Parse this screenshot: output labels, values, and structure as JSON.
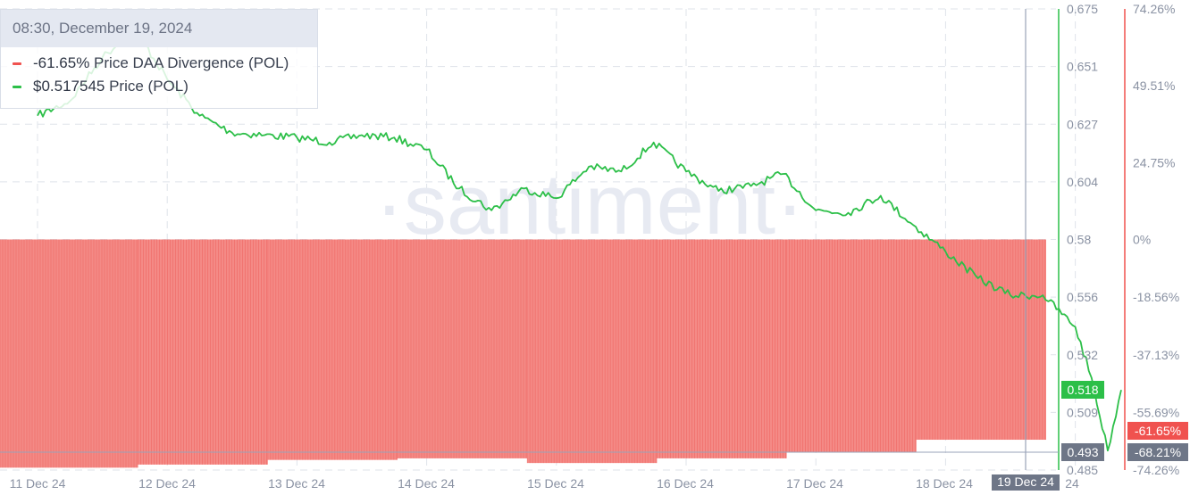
{
  "tooltip": {
    "timestamp": "08:30, December 19, 2024",
    "rows": [
      {
        "value": "-61.65%",
        "label": "Price DAA Divergence (POL)",
        "color": "#f0524f"
      },
      {
        "value": "$0.517545",
        "label": "Price (POL)",
        "color": "#2cbf48"
      }
    ]
  },
  "watermark": "·santiment·",
  "badges": {
    "price_current": "0.518",
    "price_crosshair": "0.493",
    "divergence_current": "-61.65%",
    "divergence_crosshair": "-68.21%",
    "date_crosshair": "19 Dec 24"
  },
  "colors": {
    "price": "#2cbf48",
    "divergence": "#f0524f",
    "divergence_fill": "#f48a86",
    "crosshair": "#9aa3b8",
    "grid": "#dfe3ea",
    "axis_text": "#8a92a3"
  },
  "chart_data": {
    "type": "line",
    "x_ticks": [
      "11 Dec 24",
      "12 Dec 24",
      "13 Dec 24",
      "14 Dec 24",
      "15 Dec 24",
      "16 Dec 24",
      "17 Dec 24",
      "18 Dec 24",
      "19 Dec 24",
      "24"
    ],
    "y_left_price": {
      "ticks": [
        "0.675",
        "0.651",
        "0.627",
        "0.604",
        "0.58",
        "0.556",
        "0.532",
        "0.509",
        "0.485"
      ],
      "range": [
        0.485,
        0.675
      ]
    },
    "y_right_divergence": {
      "ticks": [
        "74.26%",
        "49.51%",
        "24.75%",
        "0%",
        "-18.56%",
        "-37.13%",
        "-55.69%",
        "-74.26%"
      ],
      "range": [
        -74.26,
        74.26
      ]
    },
    "series": [
      {
        "name": "Price (POL)",
        "type": "line",
        "x": [
          "11 Dec 00:00",
          "11 Dec 06:00",
          "11 Dec 12:00",
          "11 Dec 18:00",
          "12 Dec 00:00",
          "12 Dec 06:00",
          "12 Dec 12:00",
          "12 Dec 18:00",
          "13 Dec 00:00",
          "13 Dec 06:00",
          "13 Dec 12:00",
          "13 Dec 18:00",
          "14 Dec 00:00",
          "14 Dec 06:00",
          "14 Dec 12:00",
          "14 Dec 18:00",
          "15 Dec 00:00",
          "15 Dec 06:00",
          "15 Dec 12:00",
          "15 Dec 18:00",
          "16 Dec 00:00",
          "16 Dec 06:00",
          "16 Dec 12:00",
          "16 Dec 18:00",
          "17 Dec 00:00",
          "17 Dec 06:00",
          "17 Dec 12:00",
          "17 Dec 18:00",
          "18 Dec 00:00",
          "18 Dec 06:00",
          "18 Dec 12:00",
          "18 Dec 18:00",
          "19 Dec 00:00",
          "19 Dec 03:00",
          "19 Dec 06:00",
          "19 Dec 08:30"
        ],
        "values": [
          0.631,
          0.637,
          0.655,
          0.667,
          0.646,
          0.631,
          0.624,
          0.623,
          0.622,
          0.62,
          0.623,
          0.622,
          0.617,
          0.601,
          0.592,
          0.601,
          0.597,
          0.61,
          0.608,
          0.62,
          0.608,
          0.6,
          0.602,
          0.607,
          0.592,
          0.591,
          0.598,
          0.586,
          0.575,
          0.564,
          0.557,
          0.557,
          0.544,
          0.523,
          0.493,
          0.518
        ]
      },
      {
        "name": "Price DAA Divergence (POL)",
        "type": "bar",
        "x": [
          "11 Dec",
          "12 Dec",
          "13 Dec",
          "14 Dec",
          "15 Dec",
          "16 Dec",
          "17 Dec",
          "18 Dec",
          "19 Dec"
        ],
        "values": [
          -73.5,
          -72.5,
          -71.0,
          -70.5,
          -72.0,
          -70.5,
          -68.5,
          -64.5,
          -61.65
        ]
      }
    ]
  }
}
